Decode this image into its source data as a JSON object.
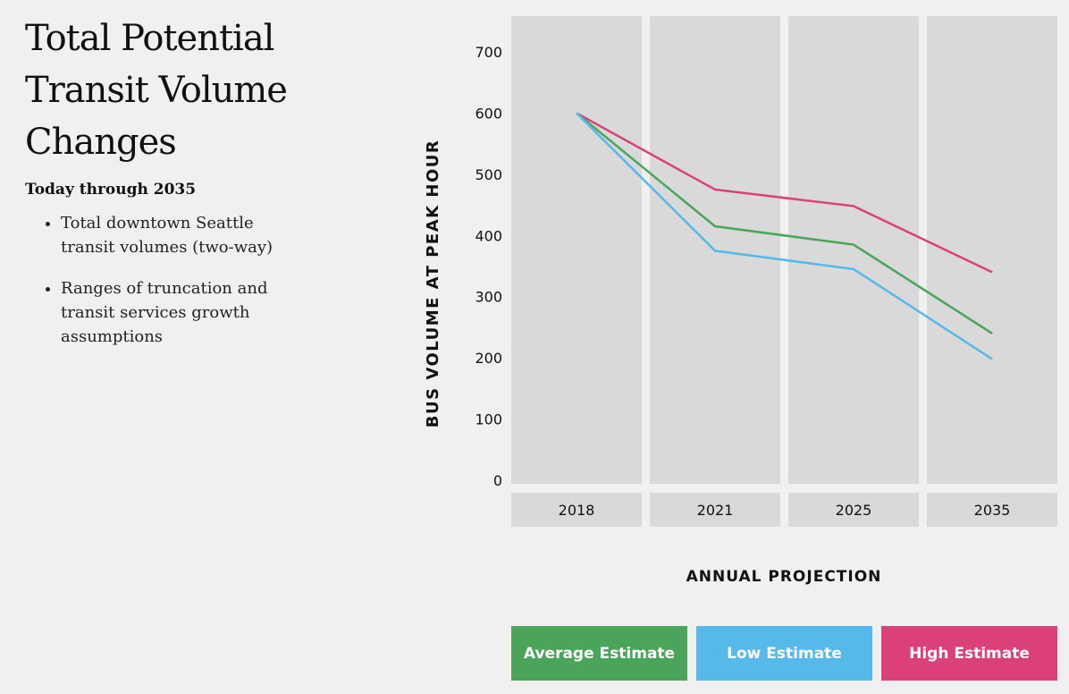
{
  "title": "Total Potential Transit Volume Changes",
  "subtitle": "Today through 2035",
  "bullets": [
    "Total downtown Seattle transit volumes (two-way)",
    "Ranges of truncation and transit services growth assumptions"
  ],
  "chart_data": {
    "type": "line",
    "categories": [
      "2018",
      "2021",
      "2025",
      "2035"
    ],
    "xlabel": "ANNUAL PROJECTION",
    "ylabel": "BUS VOLUME AT PEAK HOUR",
    "ylim": [
      0,
      700
    ],
    "yticks": [
      0,
      100,
      200,
      300,
      400,
      500,
      600,
      700
    ],
    "series": [
      {
        "name": "Average Estimate",
        "color": "#4aa55a",
        "values": [
          600,
          415,
          385,
          240
        ]
      },
      {
        "name": "Low Estimate",
        "color": "#56b9ea",
        "values": [
          600,
          375,
          345,
          198
        ]
      },
      {
        "name": "High Estimate",
        "color": "#dc4079",
        "values": [
          600,
          475,
          448,
          340
        ]
      }
    ],
    "legend": "bottom"
  }
}
